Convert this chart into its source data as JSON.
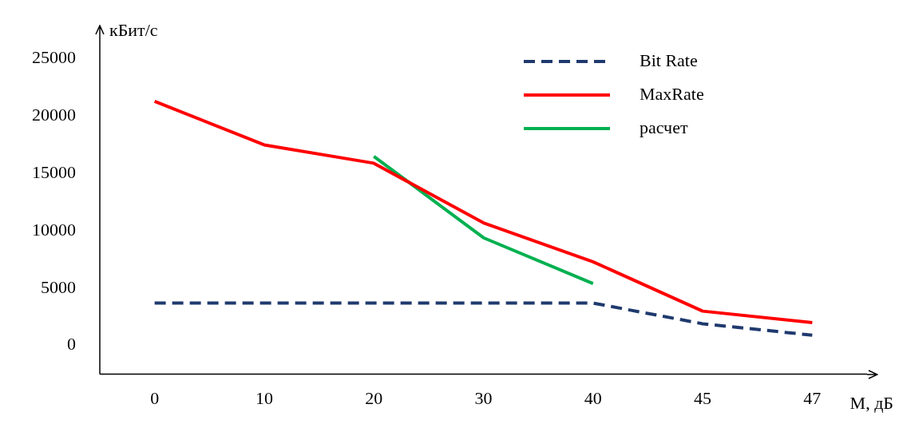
{
  "chart_data": {
    "type": "line",
    "xlabel": "M, дБ",
    "ylabel": "кБит/с",
    "categories": [
      "0",
      "10",
      "20",
      "30",
      "40",
      "45",
      "47"
    ],
    "ylim": [
      -2500,
      27000
    ],
    "yticks": [
      0,
      5000,
      10000,
      15000,
      20000,
      25000
    ],
    "grid": false,
    "legend": "top right",
    "marker": "none",
    "series": [
      {
        "name": "Bit Rate",
        "color": "#1f3a6e",
        "line_style": "dashed",
        "values": [
          3700,
          3700,
          3700,
          3700,
          3700,
          1900,
          900
        ]
      },
      {
        "name": "MaxRate",
        "color": "#ff0000",
        "line_style": "solid",
        "values": [
          21300,
          17500,
          15900,
          10700,
          7300,
          3000,
          2000
        ]
      },
      {
        "name": "расчет",
        "color": "#00b050",
        "line_style": "solid",
        "values": [
          null,
          null,
          16500,
          9400,
          5400,
          null,
          null
        ]
      }
    ]
  }
}
